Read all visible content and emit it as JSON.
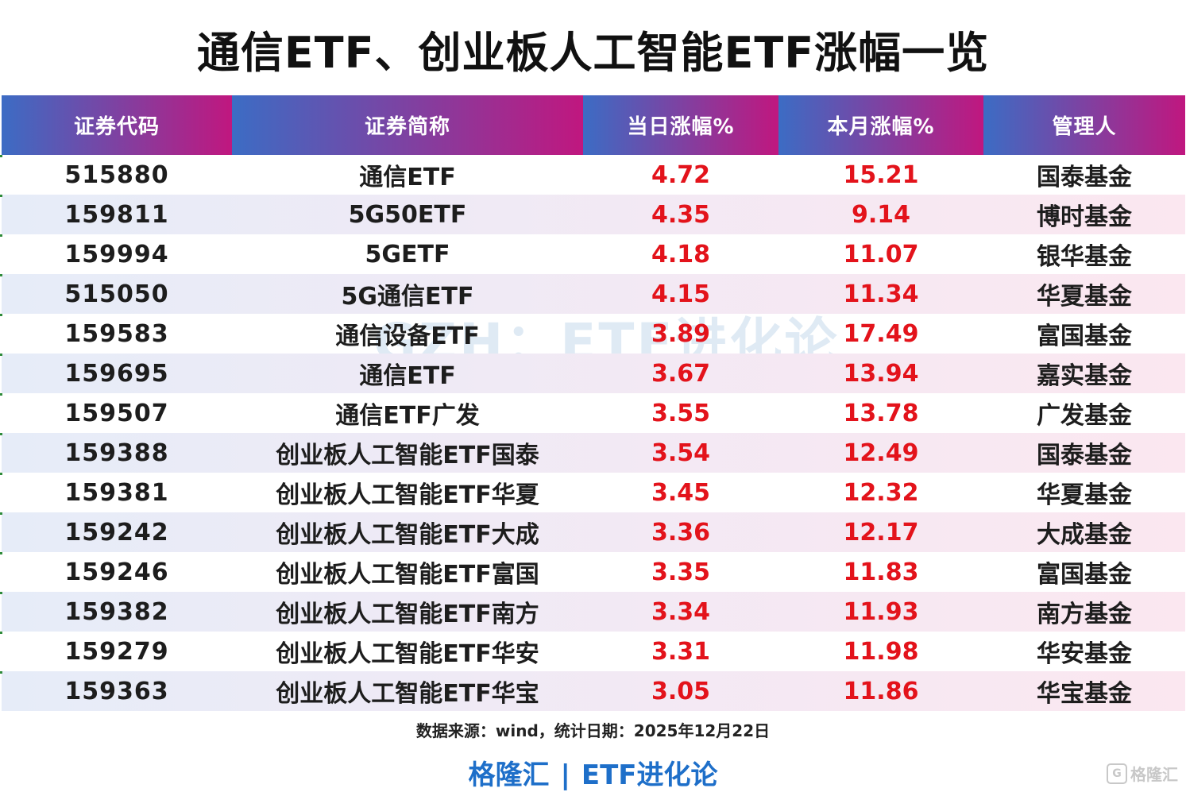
{
  "title": "通信ETF、创业板人工智能ETF涨幅一览",
  "table": {
    "headers": [
      "证券代码",
      "证券简称",
      "当日涨幅%",
      "本月涨幅%",
      "管理人"
    ],
    "rows": [
      {
        "code": "515880",
        "name": "通信ETF",
        "day": "4.72",
        "month": "15.21",
        "manager": "国泰基金"
      },
      {
        "code": "159811",
        "name": "5G50ETF",
        "day": "4.35",
        "month": "9.14",
        "manager": "博时基金"
      },
      {
        "code": "159994",
        "name": "5GETF",
        "day": "4.18",
        "month": "11.07",
        "manager": "银华基金"
      },
      {
        "code": "515050",
        "name": "5G通信ETF",
        "day": "4.15",
        "month": "11.34",
        "manager": "华夏基金"
      },
      {
        "code": "159583",
        "name": "通信设备ETF",
        "day": "3.89",
        "month": "17.49",
        "manager": "富国基金"
      },
      {
        "code": "159695",
        "name": "通信ETF",
        "day": "3.67",
        "month": "13.94",
        "manager": "嘉实基金"
      },
      {
        "code": "159507",
        "name": "通信ETF广发",
        "day": "3.55",
        "month": "13.78",
        "manager": "广发基金"
      },
      {
        "code": "159388",
        "name": "创业板人工智能ETF国泰",
        "day": "3.54",
        "month": "12.49",
        "manager": "国泰基金"
      },
      {
        "code": "159381",
        "name": "创业板人工智能ETF华夏",
        "day": "3.45",
        "month": "12.32",
        "manager": "华夏基金"
      },
      {
        "code": "159242",
        "name": "创业板人工智能ETF大成",
        "day": "3.36",
        "month": "12.17",
        "manager": "大成基金"
      },
      {
        "code": "159246",
        "name": "创业板人工智能ETF富国",
        "day": "3.35",
        "month": "11.83",
        "manager": "富国基金"
      },
      {
        "code": "159382",
        "name": "创业板人工智能ETF南方",
        "day": "3.34",
        "month": "11.93",
        "manager": "南方基金"
      },
      {
        "code": "159279",
        "name": "创业板人工智能ETF华安",
        "day": "3.31",
        "month": "11.98",
        "manager": "华安基金"
      },
      {
        "code": "159363",
        "name": "创业板人工智能ETF华宝",
        "day": "3.05",
        "month": "11.86",
        "manager": "华宝基金"
      }
    ]
  },
  "footer": {
    "source": "数据来源：wind，统计日期：2025年12月22日",
    "brand_left": "格隆汇",
    "brand_sep": "|",
    "brand_right": "ETF进化论"
  },
  "watermark": "GZH：ETF进化论",
  "corner_logo": {
    "icon": "g-logo-icon",
    "text": "格隆汇"
  },
  "colors": {
    "header_gradient_start": "#3c6cc4",
    "header_gradient_end": "#c0177f",
    "positive_change": "#e3131b",
    "brand_blue": "#1e6fc9"
  }
}
